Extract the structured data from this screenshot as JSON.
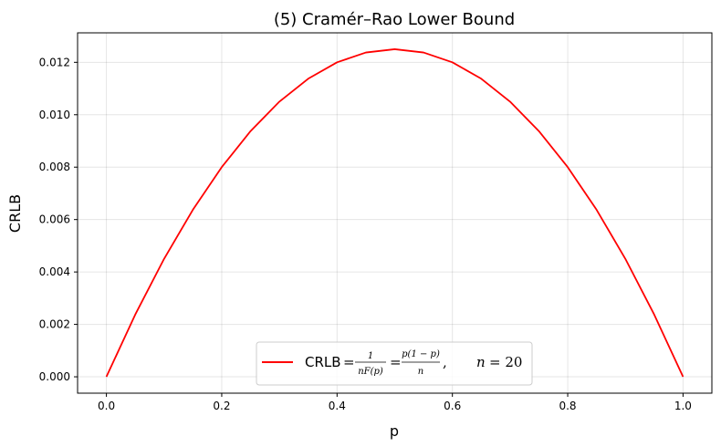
{
  "chart_data": {
    "type": "line",
    "title": "(5) Cramér–Rao Lower Bound",
    "xlabel": "p",
    "ylabel": "CRLB",
    "xlim": [
      -0.05,
      1.05
    ],
    "ylim": [
      -0.000625,
      0.013125
    ],
    "xticks": [
      0.0,
      0.2,
      0.4,
      0.6,
      0.8,
      1.0
    ],
    "xtick_labels": [
      "0.0",
      "0.2",
      "0.4",
      "0.6",
      "0.8",
      "1.0"
    ],
    "yticks": [
      0.0,
      0.002,
      0.004,
      0.006,
      0.008,
      0.01,
      0.012
    ],
    "ytick_labels": [
      "0.000",
      "0.002",
      "0.004",
      "0.006",
      "0.008",
      "0.010",
      "0.012"
    ],
    "grid": true,
    "legend_position": "bottom-center",
    "series": [
      {
        "name": "CRLB = 1/(nF(p)) = p(1−p)/n,   n = 20",
        "color": "#ff0000",
        "x": [
          0.0,
          0.05,
          0.1,
          0.15,
          0.2,
          0.25,
          0.3,
          0.35,
          0.4,
          0.45,
          0.5,
          0.55,
          0.6,
          0.65,
          0.7,
          0.75,
          0.8,
          0.85,
          0.9,
          0.95,
          1.0
        ],
        "y": [
          0.0,
          0.002375,
          0.0045,
          0.006375,
          0.008,
          0.009375,
          0.0105,
          0.011375,
          0.012,
          0.012375,
          0.0125,
          0.012375,
          0.012,
          0.011375,
          0.0105,
          0.009375,
          0.008,
          0.006375,
          0.0045,
          0.002375,
          0.0
        ]
      }
    ],
    "legend": {
      "prefix": "CRLB",
      "eq": "=",
      "frac1_num": "1",
      "frac1_den": "nF(p)",
      "frac2_num": "p(1 − p)",
      "frac2_den": "n",
      "comma": ",",
      "n_label": "n",
      "n_eq": "= 20"
    }
  }
}
